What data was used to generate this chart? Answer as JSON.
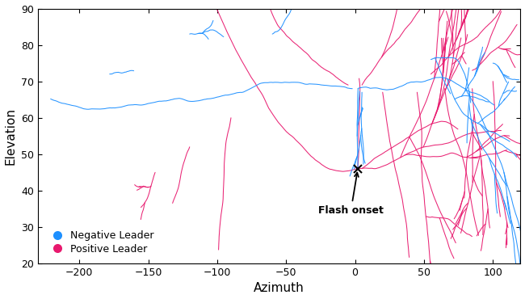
{
  "xlabel": "Azimuth",
  "ylabel": "Elevation",
  "xlim": [
    -230,
    120
  ],
  "ylim": [
    20,
    90
  ],
  "xticks": [
    -200,
    -150,
    -100,
    -50,
    0,
    50,
    100
  ],
  "yticks": [
    20,
    30,
    40,
    50,
    60,
    70,
    80,
    90
  ],
  "negative_color": "#1E90FF",
  "positive_color": "#E8196E",
  "flash_onset": [
    2,
    46
  ],
  "flash_onset_label": "Flash onset",
  "legend_neg": "Negative Leader",
  "legend_pos": "Positive Leader",
  "figsize": [
    6.5,
    3.7
  ],
  "dpi": 100
}
